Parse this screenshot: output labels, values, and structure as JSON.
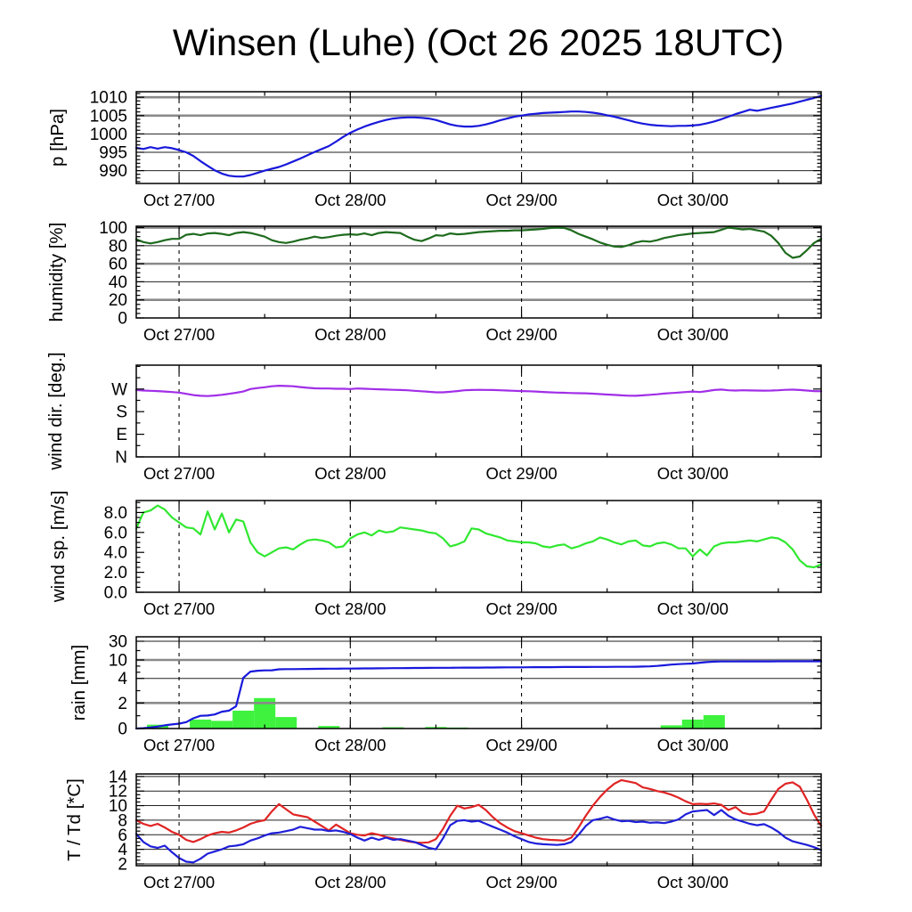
{
  "title": "Winsen (Luhe) (Oct 26 2025 18UTC)",
  "x_axis": {
    "range_hours": [
      0,
      96
    ],
    "ticks": [
      {
        "h": 6,
        "label": "Oct 27/00"
      },
      {
        "h": 30,
        "label": "Oct 28/00"
      },
      {
        "h": 54,
        "label": "Oct 29/00"
      },
      {
        "h": 78,
        "label": "Oct 30/00"
      }
    ],
    "minor_hours": [
      18,
      42,
      66,
      90
    ]
  },
  "chart_data": [
    {
      "type": "line",
      "name": "pressure",
      "ylabel": "p [hPa]",
      "ylabel_x": 71,
      "ylim": [
        986.5,
        1011.5
      ],
      "yticks": [
        {
          "v": 990,
          "label": "990"
        },
        {
          "v": 995,
          "label": "995"
        },
        {
          "v": 1000,
          "label": "1000"
        },
        {
          "v": 1005,
          "label": "1005"
        },
        {
          "v": 1010,
          "label": "1010"
        }
      ],
      "yminor_step": 1,
      "grid_thin": [
        990,
        995,
        1000
      ],
      "grid_thick": [
        1005,
        1010
      ],
      "series": [
        {
          "name": "pressure",
          "color": "#1818dc",
          "values_hourly": [
            996.2,
            995.9,
            996.4,
            996.0,
            996.4,
            996.1,
            995.6,
            995.0,
            994.0,
            992.6,
            991.3,
            990.1,
            989.2,
            988.6,
            988.4,
            988.4,
            988.8,
            989.4,
            990.0,
            990.5,
            991.0,
            991.7,
            992.5,
            993.3,
            994.2,
            995.1,
            995.9,
            996.7,
            997.9,
            999.2,
            1000.3,
            1001.2,
            1002.0,
            1002.7,
            1003.3,
            1003.8,
            1004.2,
            1004.4,
            1004.5,
            1004.5,
            1004.4,
            1004.2,
            1003.8,
            1003.2,
            1002.6,
            1002.2,
            1002.0,
            1002.0,
            1002.2,
            1002.6,
            1003.1,
            1003.7,
            1004.2,
            1004.7,
            1005.0,
            1005.3,
            1005.5,
            1005.7,
            1005.8,
            1005.9,
            1006.0,
            1006.1,
            1006.1,
            1006.0,
            1005.8,
            1005.5,
            1005.1,
            1004.7,
            1004.2,
            1003.7,
            1003.2,
            1002.8,
            1002.5,
            1002.3,
            1002.2,
            1002.1,
            1002.2,
            1002.2,
            1002.3,
            1002.5,
            1002.9,
            1003.4,
            1004.0,
            1004.7,
            1005.4,
            1006.0,
            1006.6,
            1006.3,
            1006.7,
            1007.1,
            1007.5,
            1007.9,
            1008.3,
            1008.8,
            1009.3,
            1009.8,
            1010.4
          ]
        }
      ]
    },
    {
      "type": "line",
      "name": "humidity",
      "ylabel": "humidity [%]",
      "ylabel_x": 70,
      "ylim": [
        0,
        101.5
      ],
      "yticks": [
        {
          "v": 0,
          "label": "0"
        },
        {
          "v": 20,
          "label": "20"
        },
        {
          "v": 40,
          "label": "40"
        },
        {
          "v": 60,
          "label": "60"
        },
        {
          "v": 80,
          "label": "80"
        },
        {
          "v": 100,
          "label": "100"
        }
      ],
      "yminor_step": 5,
      "grid_thin": [
        40,
        80
      ],
      "grid_thick": [
        20,
        60,
        100
      ],
      "series": [
        {
          "name": "humidity",
          "color": "#1e6b1e",
          "values_hourly": [
            87,
            84,
            82.5,
            84,
            86,
            87.5,
            87.5,
            92,
            93,
            91.5,
            93.5,
            94,
            93,
            91.5,
            94,
            95,
            94,
            92,
            90,
            86,
            84,
            83,
            84.5,
            86.5,
            88,
            90,
            88.5,
            89.5,
            91,
            92,
            92.5,
            92,
            93.5,
            91.5,
            94,
            95,
            94.5,
            94,
            90,
            86.5,
            85,
            88,
            91.5,
            91,
            93.5,
            92.5,
            93,
            94,
            95,
            95.5,
            96,
            96.5,
            96.5,
            97,
            97,
            97.5,
            98,
            98.5,
            99.5,
            100,
            99.5,
            97,
            93,
            90,
            87,
            83.5,
            81,
            79,
            78.5,
            80.5,
            83.5,
            85,
            84.5,
            86,
            88.5,
            90,
            91.5,
            92.5,
            93.5,
            94,
            94.5,
            95,
            97.5,
            100,
            99,
            98,
            98.5,
            97,
            95.5,
            91,
            83,
            72,
            66.5,
            68,
            75,
            83,
            87.5
          ]
        }
      ]
    },
    {
      "type": "line",
      "name": "wind-direction",
      "ylabel": "wind dir. [deg.]",
      "ylabel_x": 69,
      "ylim": [
        0,
        365
      ],
      "yticks": [
        {
          "v": 0,
          "label": "N"
        },
        {
          "v": 90,
          "label": "E"
        },
        {
          "v": 180,
          "label": "S"
        },
        {
          "v": 270,
          "label": "W"
        }
      ],
      "yminor_step": 45,
      "grid_thin": [],
      "grid_thick": [],
      "series": [
        {
          "name": "wind-direction",
          "color": "#a12ee8",
          "values_hourly": [
            266,
            264,
            263,
            262,
            260,
            258,
            256,
            251,
            246,
            243,
            242,
            244,
            247,
            251,
            255,
            260,
            270,
            274,
            277,
            281,
            283,
            282,
            281,
            278,
            275,
            273,
            272,
            272,
            271,
            271,
            270,
            272,
            271,
            270,
            269,
            268,
            267,
            266,
            265,
            263,
            261,
            259,
            257,
            257,
            259,
            262,
            265,
            266,
            267,
            266.5,
            266,
            265,
            264,
            263,
            262,
            261,
            260,
            258.5,
            257,
            256,
            255,
            254,
            253.5,
            253,
            251.5,
            250,
            248,
            246.5,
            245,
            243.5,
            243,
            245,
            247,
            249,
            252,
            254,
            256,
            258,
            260,
            258,
            262,
            266,
            268,
            265,
            264,
            265,
            264.5,
            264,
            263.5,
            264,
            265,
            267,
            267.5,
            266,
            264,
            262,
            261
          ]
        }
      ]
    },
    {
      "type": "line",
      "name": "wind-speed",
      "ylabel": "wind sp. [m/s]",
      "ylabel_x": 72,
      "ylim": [
        0,
        9.2
      ],
      "yticks": [
        {
          "v": 0,
          "label": "0.0"
        },
        {
          "v": 2,
          "label": "2.0"
        },
        {
          "v": 4,
          "label": "4.0"
        },
        {
          "v": 6,
          "label": "6.0"
        },
        {
          "v": 8,
          "label": "8.0"
        }
      ],
      "yminor_step": 0.5,
      "grid_thin": [],
      "grid_thick": [],
      "series": [
        {
          "name": "wind-speed",
          "color": "#30e830",
          "values_hourly": [
            6.4,
            8.0,
            8.2,
            8.7,
            8.3,
            7.5,
            7.0,
            6.5,
            6.4,
            5.8,
            8.1,
            6.3,
            7.9,
            6.0,
            7.3,
            7.1,
            5.0,
            4.0,
            3.6,
            4.0,
            4.4,
            4.5,
            4.3,
            4.8,
            5.2,
            5.3,
            5.2,
            5.0,
            4.5,
            4.6,
            5.4,
            5.8,
            6.0,
            5.7,
            6.2,
            6.0,
            6.1,
            6.5,
            6.4,
            6.3,
            6.2,
            6.0,
            5.9,
            5.4,
            4.6,
            4.8,
            5.1,
            6.4,
            6.3,
            5.9,
            5.7,
            5.5,
            5.2,
            5.1,
            5.0,
            5.0,
            4.9,
            4.6,
            4.5,
            4.7,
            4.8,
            4.4,
            4.6,
            4.9,
            5.1,
            5.5,
            5.3,
            5.0,
            4.8,
            5.1,
            5.2,
            4.7,
            4.6,
            4.9,
            5.0,
            4.8,
            4.4,
            4.4,
            3.6,
            4.3,
            3.7,
            4.6,
            4.9,
            5.0,
            5.0,
            5.1,
            5.2,
            5.1,
            5.3,
            5.5,
            5.4,
            5.0,
            4.3,
            3.2,
            2.6,
            2.5,
            2.8
          ]
        }
      ]
    },
    {
      "type": "mixed",
      "name": "rain",
      "ylabel": "rain [mm]",
      "ylabel_x": 95,
      "scale_anchors": [
        [
          0,
          0
        ],
        [
          2,
          0.2786
        ],
        [
          4,
          0.5466
        ],
        [
          10,
          0.7476
        ],
        [
          30,
          0.9515
        ],
        [
          45,
          1.0
        ]
      ],
      "yticks": [
        {
          "v": 0,
          "label": "0"
        },
        {
          "v": 2,
          "label": "2"
        },
        {
          "v": 4,
          "label": "4"
        },
        {
          "v": 10,
          "label": "10"
        },
        {
          "v": 30,
          "label": "30"
        }
      ],
      "yminor_values": [
        1,
        3,
        6,
        8,
        20
      ],
      "grid_thin": [
        4,
        30
      ],
      "grid_thick": [
        2,
        10
      ],
      "bars": {
        "name": "rain-3h",
        "color": "#3ef23e",
        "width_hours": 3,
        "centers": [
          3,
          9,
          12,
          15,
          18,
          21,
          27,
          36,
          42,
          45,
          75,
          78,
          81
        ],
        "values": [
          0.3,
          0.7,
          0.6,
          1.4,
          2.4,
          0.9,
          0.2,
          0.1,
          0.12,
          0.08,
          0.25,
          0.7,
          1.05
        ]
      },
      "series": [
        {
          "name": "rain-accumulated",
          "color": "#1818dc",
          "values_hourly": [
            0,
            0.03,
            0.08,
            0.15,
            0.25,
            0.32,
            0.38,
            0.5,
            0.8,
            1.0,
            1.02,
            1.1,
            1.32,
            1.4,
            1.75,
            4.2,
            6.2,
            6.5,
            6.6,
            6.65,
            6.95,
            7.0,
            7.02,
            7.05,
            7.08,
            7.1,
            7.12,
            7.15,
            7.17,
            7.19,
            7.2,
            7.22,
            7.24,
            7.26,
            7.28,
            7.3,
            7.32,
            7.34,
            7.36,
            7.38,
            7.4,
            7.42,
            7.44,
            7.45,
            7.46,
            7.48,
            7.5,
            7.51,
            7.52,
            7.54,
            7.55,
            7.56,
            7.58,
            7.6,
            7.6,
            7.62,
            7.64,
            7.65,
            7.66,
            7.68,
            7.7,
            7.7,
            7.72,
            7.72,
            7.74,
            7.74,
            7.75,
            7.76,
            7.78,
            7.78,
            7.8,
            7.85,
            7.9,
            8.05,
            8.25,
            8.5,
            8.65,
            8.75,
            8.85,
            9.1,
            9.3,
            9.45,
            9.5,
            9.52,
            9.52,
            9.53,
            9.53,
            9.54,
            9.54,
            9.54,
            9.55,
            9.55,
            9.55,
            9.55,
            9.55,
            9.55,
            9.55
          ]
        }
      ]
    },
    {
      "type": "line",
      "name": "temperature",
      "ylabel": "T / Td [*C]",
      "ylabel_x": 90,
      "ylim": [
        1.75,
        14.35
      ],
      "yticks": [
        {
          "v": 2,
          "label": "2"
        },
        {
          "v": 4,
          "label": "4"
        },
        {
          "v": 6,
          "label": "6"
        },
        {
          "v": 8,
          "label": "8"
        },
        {
          "v": 10,
          "label": "10"
        },
        {
          "v": 12,
          "label": "12"
        },
        {
          "v": 14,
          "label": "14"
        }
      ],
      "yminor_step": 0.5,
      "grid_thin": [
        2,
        4,
        6,
        8,
        10,
        12,
        14
      ],
      "grid_thick": [],
      "series": [
        {
          "name": "temperature",
          "color": "#e02424",
          "values_hourly": [
            8.0,
            7.5,
            7.2,
            7.5,
            7.0,
            6.4,
            6.0,
            5.3,
            5.0,
            5.4,
            5.9,
            6.2,
            6.4,
            6.3,
            6.6,
            7.0,
            7.5,
            7.8,
            8.0,
            9.2,
            10.2,
            9.5,
            8.8,
            8.6,
            8.4,
            7.8,
            7.2,
            6.6,
            7.4,
            6.8,
            6.2,
            6.0,
            5.9,
            6.2,
            6.0,
            5.7,
            5.5,
            5.3,
            5.1,
            4.95,
            4.9,
            4.95,
            5.4,
            6.8,
            8.6,
            10.0,
            9.6,
            9.8,
            10.1,
            9.4,
            8.4,
            7.6,
            7.0,
            6.5,
            6.2,
            5.9,
            5.6,
            5.4,
            5.3,
            5.25,
            5.2,
            5.6,
            7.0,
            8.6,
            10.0,
            11.2,
            12.2,
            13.0,
            13.5,
            13.3,
            13.1,
            12.5,
            12.3,
            12.0,
            11.8,
            11.5,
            11.1,
            10.6,
            10.2,
            10.25,
            10.2,
            10.3,
            10.1,
            9.4,
            9.8,
            9.0,
            8.8,
            8.9,
            9.2,
            10.8,
            12.3,
            13.0,
            13.2,
            12.6,
            10.8,
            8.8,
            7.2
          ]
        },
        {
          "name": "dewpoint",
          "color": "#1f1fd9",
          "values_hourly": [
            6.1,
            5.0,
            4.4,
            4.2,
            4.5,
            3.6,
            2.8,
            2.3,
            2.2,
            2.7,
            3.4,
            3.7,
            4.0,
            4.4,
            4.5,
            4.7,
            5.2,
            5.5,
            5.9,
            6.2,
            6.3,
            6.5,
            6.7,
            7.1,
            6.9,
            6.7,
            6.7,
            6.5,
            6.6,
            6.4,
            6.1,
            5.6,
            5.2,
            5.6,
            5.3,
            5.6,
            5.3,
            5.4,
            5.2,
            5.0,
            4.6,
            4.2,
            4.0,
            5.5,
            7.3,
            7.9,
            8.0,
            7.8,
            7.9,
            7.5,
            7.1,
            6.7,
            6.3,
            5.8,
            5.4,
            5.0,
            4.8,
            4.7,
            4.65,
            4.6,
            4.7,
            5.0,
            6.0,
            7.2,
            8.0,
            8.2,
            8.45,
            8.1,
            7.85,
            7.9,
            7.75,
            7.8,
            7.65,
            7.7,
            7.6,
            7.8,
            8.1,
            8.8,
            9.2,
            9.3,
            9.4,
            8.7,
            9.4,
            8.6,
            8.1,
            7.8,
            7.5,
            7.3,
            7.45,
            7.0,
            6.4,
            5.6,
            5.1,
            4.85,
            4.6,
            4.3,
            3.9
          ]
        }
      ]
    }
  ]
}
